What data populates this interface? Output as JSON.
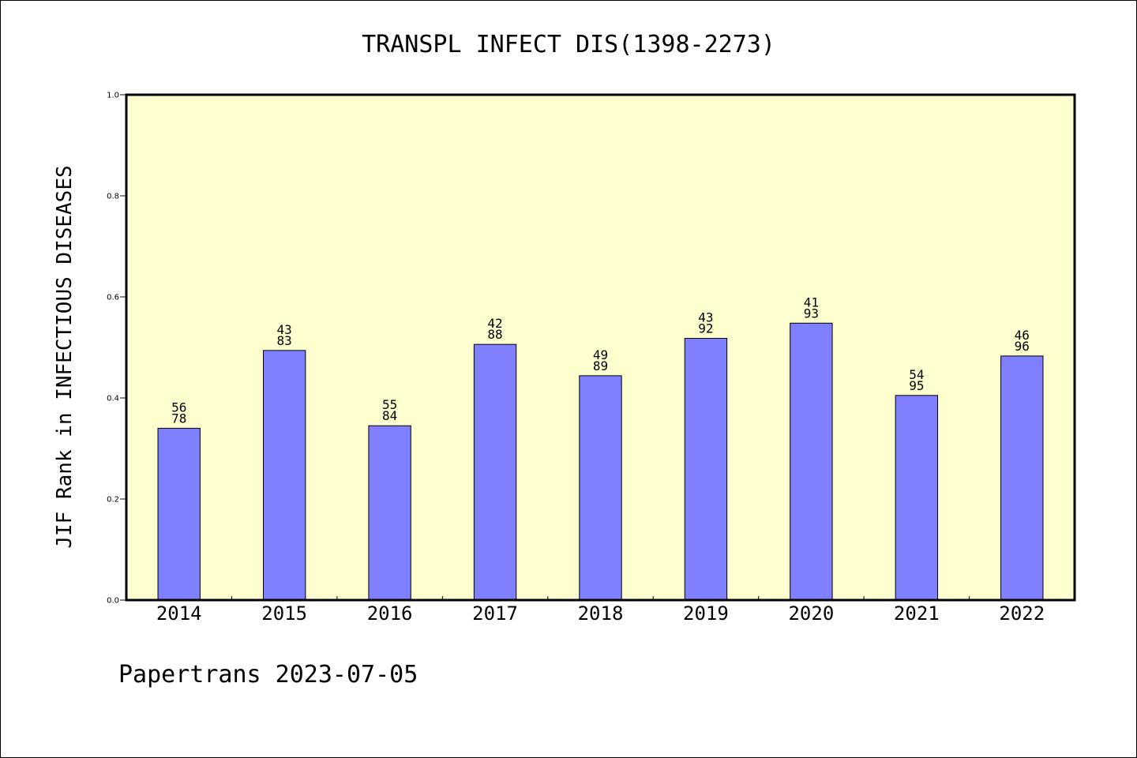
{
  "chart_data": {
    "type": "bar",
    "title": "TRANSPL INFECT DIS(1398-2273)",
    "xlabel": "",
    "ylabel": "JIF Rank in INFECTIOUS DISEASES",
    "ylim": [
      0,
      1.0
    ],
    "yticks": [
      "0.0",
      "0.2",
      "0.4",
      "0.6",
      "0.8",
      "1.0"
    ],
    "categories": [
      "2014",
      "2015",
      "2016",
      "2017",
      "2018",
      "2019",
      "2020",
      "2021",
      "2022"
    ],
    "values": [
      0.34,
      0.494,
      0.345,
      0.506,
      0.444,
      0.518,
      0.548,
      0.405,
      0.483
    ],
    "labels": [
      [
        "56",
        "78"
      ],
      [
        "43",
        "83"
      ],
      [
        "55",
        "84"
      ],
      [
        "42",
        "88"
      ],
      [
        "49",
        "89"
      ],
      [
        "43",
        "92"
      ],
      [
        "41",
        "93"
      ],
      [
        "54",
        "95"
      ],
      [
        "46",
        "96"
      ]
    ],
    "colors": {
      "plot_background": "#ffffd0",
      "bar_fill": "#8080ff",
      "bar_stroke": "#000000"
    },
    "grid": false
  },
  "footer": "Papertrans 2023-07-05"
}
